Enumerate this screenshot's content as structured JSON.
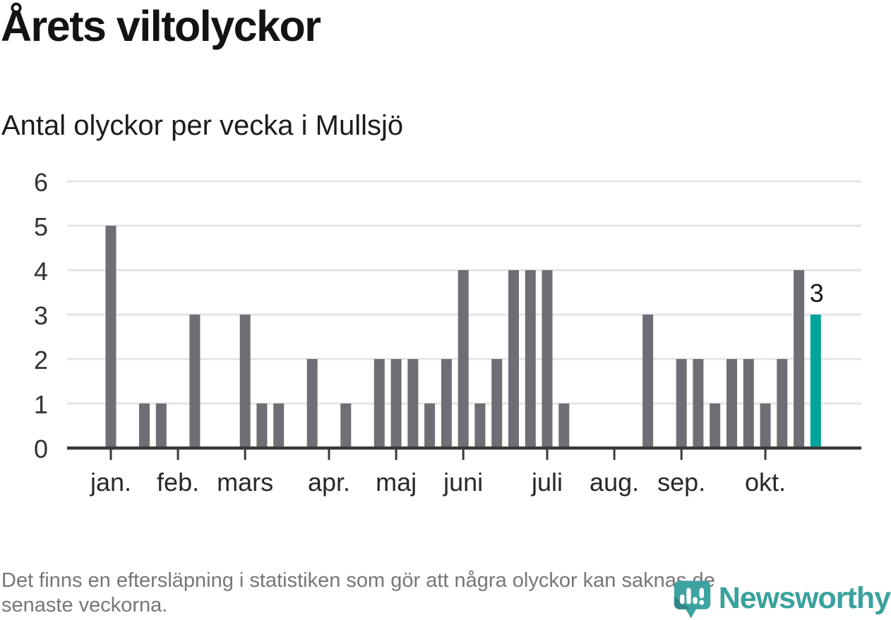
{
  "header": {
    "title": "Årets viltolyckor",
    "subtitle": "Antal olyckor per vecka i Mullsjö"
  },
  "footer": {
    "line1": "Det finns en eftersläpning i statistiken som gör att några olyckor kan saknas de",
    "line2": "senaste veckorna."
  },
  "logo": {
    "wordmark": "Newsworthy",
    "icon": "newsworthy-speech-bubble-bar-chart-icon"
  },
  "colors": {
    "bar": "#6e6e74",
    "highlight": "#00a49a",
    "axis": "#3a3a3a",
    "gridline": "#e4e4e4",
    "y_label": "#333333",
    "x_label": "#28282b",
    "annotation": "#1a1a1a",
    "title": "#131313",
    "footer_text": "#76767b",
    "logo_teal": "#3aa19c",
    "logo_teal_dark": "#2f8587"
  },
  "chart_data": {
    "type": "bar",
    "title": "Årets viltolyckor",
    "subtitle": "Antal olyckor per vecka i Mullsjö",
    "x_unit": "vecka (week of year)",
    "first_week": 1,
    "values": [
      5,
      0,
      1,
      1,
      0,
      3,
      0,
      0,
      3,
      1,
      1,
      0,
      2,
      0,
      1,
      0,
      2,
      2,
      2,
      1,
      2,
      4,
      1,
      2,
      4,
      4,
      4,
      1,
      0,
      0,
      0,
      0,
      3,
      0,
      2,
      2,
      1,
      2,
      2,
      1,
      2,
      4,
      3
    ],
    "highlight_last": true,
    "annotation_label": "3",
    "ylim": [
      0,
      6
    ],
    "y_ticks": [
      0,
      1,
      2,
      3,
      4,
      5,
      6
    ],
    "x_ticks": [
      {
        "label": "jan.",
        "week": 1
      },
      {
        "label": "feb.",
        "week": 5
      },
      {
        "label": "mars",
        "week": 9
      },
      {
        "label": "apr.",
        "week": 14
      },
      {
        "label": "maj",
        "week": 18
      },
      {
        "label": "juni",
        "week": 22
      },
      {
        "label": "juli",
        "week": 27
      },
      {
        "label": "aug.",
        "week": 31
      },
      {
        "label": "sep.",
        "week": 35
      },
      {
        "label": "okt.",
        "week": 40
      }
    ],
    "grid": "horizontal",
    "legend": "none"
  }
}
